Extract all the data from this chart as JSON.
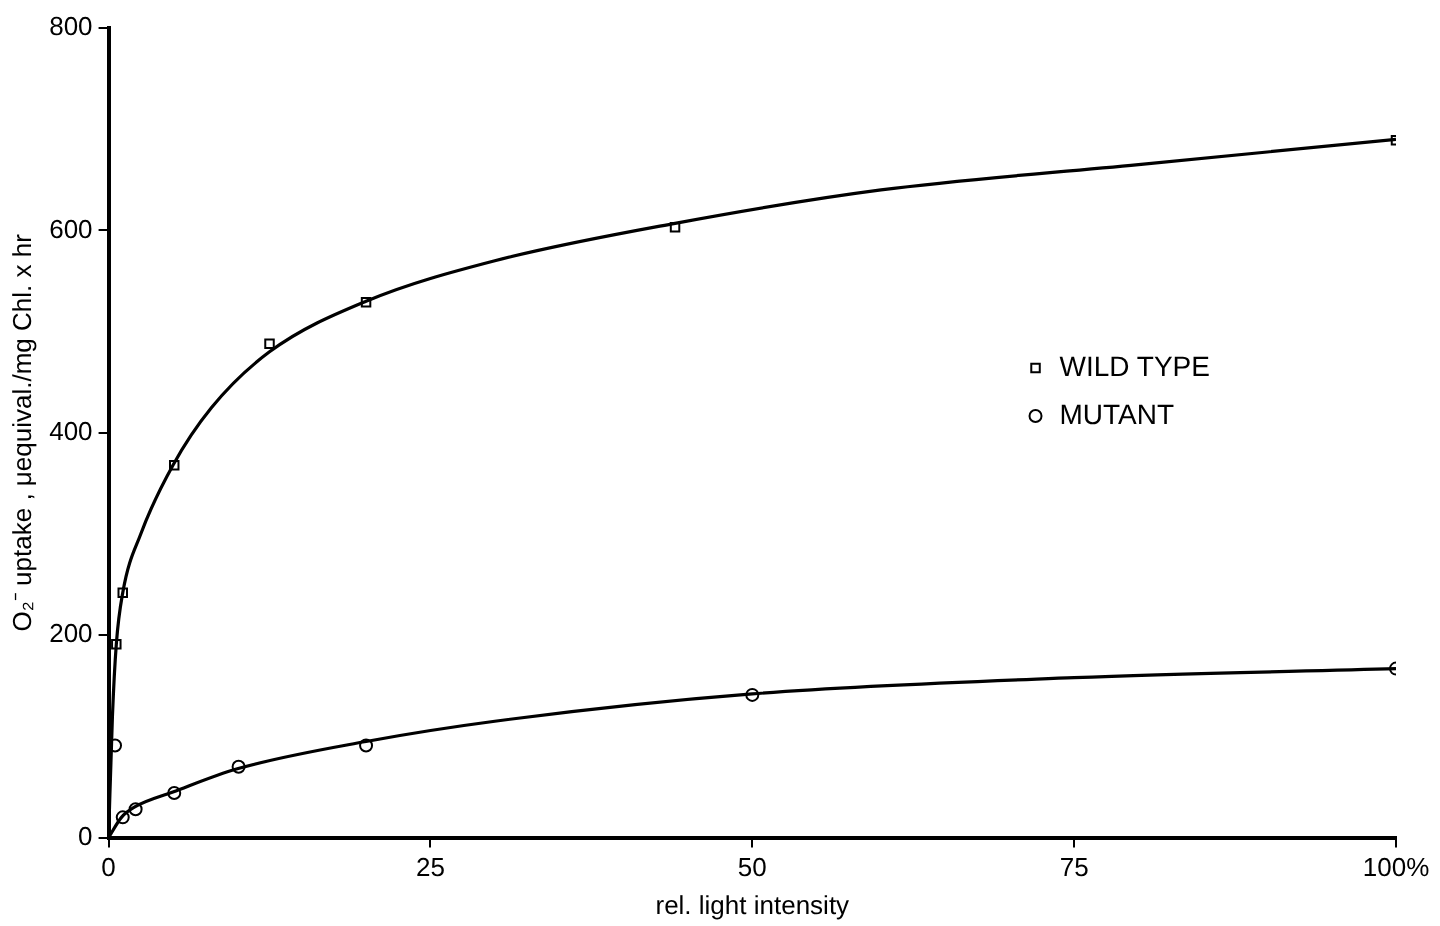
{
  "chart_data": {
    "type": "scatter",
    "xlabel": "rel. light intensity",
    "ylabel": "O₂⁻ uptake , μequival./mg Chl. x hr",
    "xlim": [
      0,
      100
    ],
    "ylim": [
      0,
      800
    ],
    "xticks": [
      0,
      25,
      50,
      75,
      {
        "value": 100,
        "label": "100%"
      }
    ],
    "yticks": [
      0,
      200,
      400,
      600,
      800
    ],
    "grid": false,
    "legend": "right",
    "series": [
      {
        "type": "line",
        "marker": "none",
        "line_style": "solid",
        "color": "#000000",
        "x": [
          0,
          0.3,
          0.6,
          1.1,
          2.5,
          5,
          8,
          12.5,
          20,
          30,
          44,
          60,
          80,
          100
        ],
        "values": [
          0,
          120,
          191,
          242,
          300,
          368,
          425,
          480,
          530,
          570,
          607,
          640,
          665,
          690
        ]
      },
      {
        "type": "line",
        "marker": "none",
        "line_style": "solid",
        "color": "#000000",
        "x": [
          0,
          1,
          2,
          5,
          10,
          20,
          30,
          50,
          75,
          100
        ],
        "values": [
          0,
          20,
          30,
          45,
          68,
          95,
          115,
          142,
          158,
          167
        ]
      },
      {
        "name": "WILD TYPE",
        "marker": "square",
        "color": "#000000",
        "x": [
          0.6,
          1.1,
          5.1,
          12.5,
          20,
          44,
          100
        ],
        "values": [
          191,
          242,
          368,
          488,
          529,
          603,
          689
        ]
      },
      {
        "name": "MUTANT",
        "marker": "circle",
        "color": "#000000",
        "x": [
          0.5,
          1.1,
          2.1,
          5.1,
          10.1,
          20,
          50,
          100
        ],
        "values": [
          91,
          20,
          28,
          44,
          70,
          91,
          141,
          167
        ]
      }
    ]
  }
}
